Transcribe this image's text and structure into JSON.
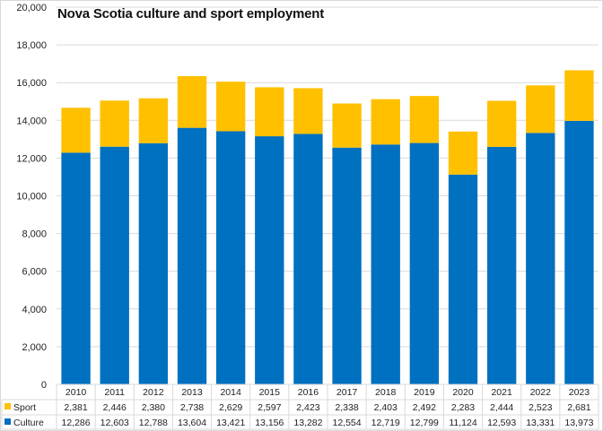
{
  "chart_data": {
    "type": "bar",
    "stacked": true,
    "title": "Nova Scotia culture and sport employment",
    "xlabel": "",
    "ylabel": "",
    "ylim": [
      0,
      20000
    ],
    "yticks": [
      0,
      2000,
      4000,
      6000,
      8000,
      10000,
      12000,
      14000,
      16000,
      18000,
      20000
    ],
    "ytick_labels": [
      "0",
      "2,000",
      "4,000",
      "6,000",
      "8,000",
      "10,000",
      "12,000",
      "14,000",
      "16,000",
      "18,000",
      "20,000"
    ],
    "grid": true,
    "legend_placement": "data-table-bottom",
    "categories": [
      "2010",
      "2011",
      "2012",
      "2013",
      "2014",
      "2015",
      "2016",
      "2017",
      "2018",
      "2019",
      "2020",
      "2021",
      "2022",
      "2023"
    ],
    "series": [
      {
        "name": "Culture",
        "color": "#0070c0",
        "values": [
          12286,
          12603,
          12788,
          13604,
          13421,
          13156,
          13282,
          12554,
          12719,
          12799,
          11124,
          12593,
          13331,
          13973
        ],
        "labels": [
          "12,286",
          "12,603",
          "12,788",
          "13,604",
          "13,421",
          "13,156",
          "13,282",
          "12,554",
          "12,719",
          "12,799",
          "11,124",
          "12,593",
          "13,331",
          "13,973"
        ]
      },
      {
        "name": "Sport",
        "color": "#ffc000",
        "values": [
          2381,
          2446,
          2380,
          2738,
          2629,
          2597,
          2423,
          2338,
          2403,
          2492,
          2283,
          2444,
          2523,
          2681
        ],
        "labels": [
          "2,381",
          "2,446",
          "2,380",
          "2,738",
          "2,629",
          "2,597",
          "2,423",
          "2,338",
          "2,403",
          "2,492",
          "2,283",
          "2,444",
          "2,523",
          "2,681"
        ]
      }
    ],
    "data_table": {
      "row_order": [
        "Sport",
        "Culture"
      ]
    }
  }
}
